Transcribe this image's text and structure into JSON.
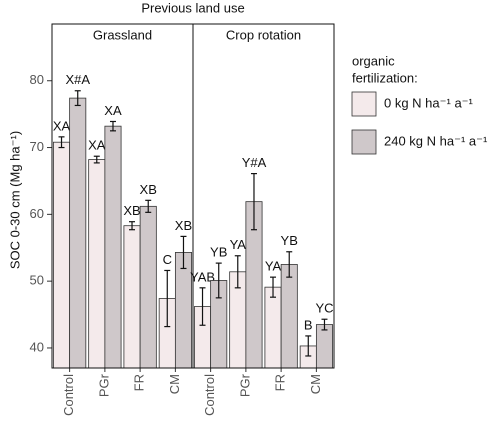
{
  "chart_data": {
    "type": "bar",
    "title": "Previous land use",
    "ylabel": "SOC 0-30 cm (Mg ha⁻¹)",
    "ylim": [
      37,
      85.2
    ],
    "yticks": [
      40,
      50,
      60,
      70,
      80
    ],
    "legend_title": [
      "organic",
      "fertilization:"
    ],
    "series": [
      {
        "name": "0 kg N ha⁻¹ a⁻¹",
        "color": "#f4eaeb"
      },
      {
        "name": "240 kg N ha⁻¹ a⁻¹",
        "color": "#cfc8ca"
      }
    ],
    "facets": [
      {
        "name": "Grassland",
        "categories": [
          "Control",
          "PGr",
          "FR",
          "CM"
        ],
        "values": [
          [
            70.8,
            68.2,
            58.3,
            47.4
          ],
          [
            77.4,
            73.2,
            61.2,
            54.3
          ]
        ],
        "errors": [
          [
            0.8,
            0.5,
            0.6,
            4.2
          ],
          [
            1.1,
            0.7,
            0.9,
            2.4
          ]
        ],
        "labels": [
          [
            "XA",
            "XA",
            "XB",
            "C"
          ],
          [
            "X#A",
            "XA",
            "XB",
            "XB"
          ]
        ]
      },
      {
        "name": "Crop rotation",
        "categories": [
          "Control",
          "PGr",
          "FR",
          "CM"
        ],
        "values": [
          [
            46.2,
            51.4,
            49.1,
            40.3
          ],
          [
            50.1,
            61.9,
            52.5,
            43.5
          ]
        ],
        "errors": [
          [
            2.8,
            2.4,
            1.5,
            1.5
          ],
          [
            2.6,
            4.2,
            1.9,
            0.8
          ]
        ],
        "labels": [
          [
            "YAB",
            "YA",
            "YA",
            "B"
          ],
          [
            "YB",
            "Y#A",
            "YB",
            "YC"
          ]
        ]
      }
    ]
  }
}
